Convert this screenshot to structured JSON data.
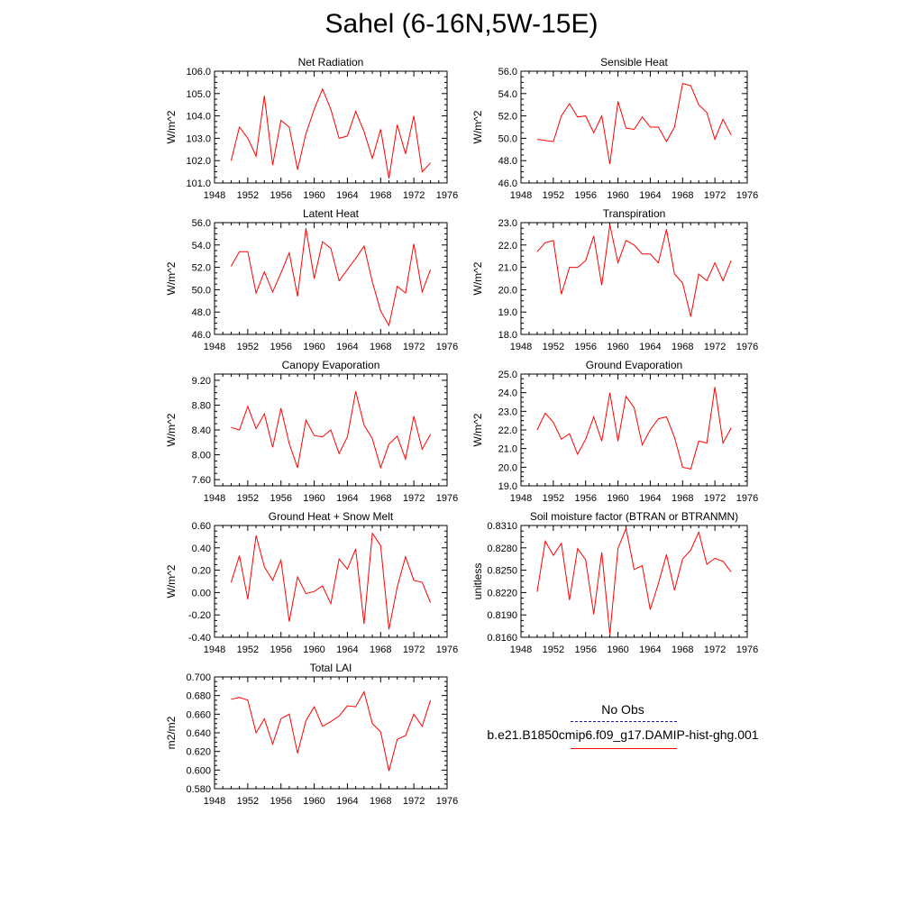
{
  "title": "Sahel (6-16N,5W-15E)",
  "legend": {
    "obs_label": "No Obs",
    "obs_color": "#1a1aa6",
    "series_label": "b.e21.B1850cmip6.f09_g17.DAMIP-hist-ghg.001",
    "series_color": "#ff0000"
  },
  "chart_data": [
    {
      "type": "line",
      "title": "Net Radiation",
      "ylabel": "W/m^2",
      "xlim": [
        1948,
        1976
      ],
      "xticks": [
        "1948",
        "1952",
        "1956",
        "1960",
        "1964",
        "1968",
        "1972",
        "1976"
      ],
      "ylim": [
        101.0,
        106.0
      ],
      "yticks": [
        "101.0",
        "102.0",
        "103.0",
        "104.0",
        "105.0",
        "106.0"
      ],
      "x": [
        1950,
        1951,
        1952,
        1953,
        1954,
        1955,
        1956,
        1957,
        1958,
        1959,
        1960,
        1961,
        1962,
        1963,
        1964,
        1965,
        1966,
        1967,
        1968,
        1969,
        1970,
        1971,
        1972,
        1973,
        1974
      ],
      "series": [
        {
          "values": [
            102.0,
            103.5,
            103.0,
            102.2,
            104.9,
            101.8,
            103.8,
            103.5,
            101.6,
            103.2,
            104.3,
            105.2,
            104.3,
            103.0,
            103.1,
            104.2,
            103.3,
            102.1,
            103.4,
            101.2,
            103.6,
            102.3,
            104.0,
            101.5,
            101.9
          ]
        }
      ]
    },
    {
      "type": "line",
      "title": "Sensible Heat",
      "ylabel": "W/m^2",
      "xlim": [
        1948,
        1976
      ],
      "xticks": [
        "1948",
        "1952",
        "1956",
        "1960",
        "1964",
        "1968",
        "1972",
        "1976"
      ],
      "ylim": [
        46.0,
        56.0
      ],
      "yticks": [
        "46.0",
        "48.0",
        "50.0",
        "52.0",
        "54.0",
        "56.0"
      ],
      "x": [
        1950,
        1951,
        1952,
        1953,
        1954,
        1955,
        1956,
        1957,
        1958,
        1959,
        1960,
        1961,
        1962,
        1963,
        1964,
        1965,
        1966,
        1967,
        1968,
        1969,
        1970,
        1971,
        1972,
        1973,
        1974
      ],
      "series": [
        {
          "values": [
            49.9,
            49.8,
            49.7,
            52.0,
            53.1,
            51.9,
            52.0,
            50.5,
            52.0,
            47.7,
            53.3,
            50.9,
            50.8,
            51.9,
            51.0,
            51.0,
            49.7,
            51.0,
            54.9,
            54.7,
            53.0,
            52.3,
            49.9,
            51.7,
            50.3
          ]
        }
      ]
    },
    {
      "type": "line",
      "title": "Latent Heat",
      "ylabel": "W/m^2",
      "xlim": [
        1948,
        1976
      ],
      "xticks": [
        "1948",
        "1952",
        "1956",
        "1960",
        "1964",
        "1968",
        "1972",
        "1976"
      ],
      "ylim": [
        46.0,
        56.0
      ],
      "yticks": [
        "46.0",
        "48.0",
        "50.0",
        "52.0",
        "54.0",
        "56.0"
      ],
      "x": [
        1950,
        1951,
        1952,
        1953,
        1954,
        1955,
        1956,
        1957,
        1958,
        1959,
        1960,
        1961,
        1962,
        1963,
        1964,
        1965,
        1966,
        1967,
        1968,
        1969,
        1970,
        1971,
        1972,
        1973,
        1974
      ],
      "series": [
        {
          "values": [
            52.1,
            53.4,
            53.4,
            49.7,
            51.6,
            49.8,
            51.5,
            53.3,
            49.4,
            55.5,
            51.0,
            54.3,
            53.7,
            50.8,
            51.8,
            52.8,
            53.9,
            50.7,
            48.1,
            46.8,
            50.3,
            49.7,
            54.1,
            49.8,
            51.8
          ]
        }
      ]
    },
    {
      "type": "line",
      "title": "Transpiration",
      "ylabel": "W/m^2",
      "xlim": [
        1948,
        1976
      ],
      "xticks": [
        "1948",
        "1952",
        "1956",
        "1960",
        "1964",
        "1968",
        "1972",
        "1976"
      ],
      "ylim": [
        18.0,
        23.0
      ],
      "yticks": [
        "18.0",
        "19.0",
        "20.0",
        "21.0",
        "22.0",
        "23.0"
      ],
      "x": [
        1950,
        1951,
        1952,
        1953,
        1954,
        1955,
        1956,
        1957,
        1958,
        1959,
        1960,
        1961,
        1962,
        1963,
        1964,
        1965,
        1966,
        1967,
        1968,
        1969,
        1970,
        1971,
        1972,
        1973,
        1974
      ],
      "series": [
        {
          "values": [
            21.7,
            22.1,
            22.2,
            19.8,
            21.0,
            21.0,
            21.3,
            22.4,
            20.2,
            22.9,
            21.2,
            22.2,
            22.0,
            21.6,
            21.6,
            21.2,
            22.7,
            20.7,
            20.3,
            18.8,
            20.7,
            20.4,
            21.2,
            20.4,
            21.3
          ]
        }
      ]
    },
    {
      "type": "line",
      "title": "Canopy Evaporation",
      "ylabel": "W/m^2",
      "xlim": [
        1948,
        1976
      ],
      "xticks": [
        "1948",
        "1952",
        "1956",
        "1960",
        "1964",
        "1968",
        "1972",
        "1976"
      ],
      "ylim": [
        7.5,
        9.3
      ],
      "yticks": [
        "7.60",
        "8.00",
        "8.40",
        "8.80",
        "9.20"
      ],
      "ytick_values": [
        7.6,
        8.0,
        8.4,
        8.8,
        9.2
      ],
      "x": [
        1950,
        1951,
        1952,
        1953,
        1954,
        1955,
        1956,
        1957,
        1958,
        1959,
        1960,
        1961,
        1962,
        1963,
        1964,
        1965,
        1966,
        1967,
        1968,
        1969,
        1970,
        1971,
        1972,
        1973,
        1974
      ],
      "series": [
        {
          "values": [
            8.44,
            8.4,
            8.78,
            8.42,
            8.66,
            8.12,
            8.75,
            8.18,
            7.79,
            8.56,
            8.31,
            8.29,
            8.4,
            8.02,
            8.29,
            9.02,
            8.48,
            8.26,
            7.79,
            8.17,
            8.3,
            7.93,
            8.62,
            8.09,
            8.33
          ]
        }
      ]
    },
    {
      "type": "line",
      "title": "Ground Evaporation",
      "ylabel": "W/m^2",
      "xlim": [
        1948,
        1976
      ],
      "xticks": [
        "1948",
        "1952",
        "1956",
        "1960",
        "1964",
        "1968",
        "1972",
        "1976"
      ],
      "ylim": [
        19.0,
        25.0
      ],
      "yticks": [
        "19.0",
        "20.0",
        "21.0",
        "22.0",
        "23.0",
        "24.0",
        "25.0"
      ],
      "x": [
        1950,
        1951,
        1952,
        1953,
        1954,
        1955,
        1956,
        1957,
        1958,
        1959,
        1960,
        1961,
        1962,
        1963,
        1964,
        1965,
        1966,
        1967,
        1968,
        1969,
        1970,
        1971,
        1972,
        1973,
        1974
      ],
      "series": [
        {
          "values": [
            22.0,
            22.9,
            22.4,
            21.5,
            21.8,
            20.7,
            21.5,
            22.7,
            21.4,
            24.0,
            21.4,
            23.8,
            23.2,
            21.2,
            22.0,
            22.6,
            22.7,
            21.6,
            20.0,
            19.9,
            21.4,
            21.3,
            24.3,
            21.3,
            22.1
          ]
        }
      ]
    },
    {
      "type": "line",
      "title": "Ground Heat + Snow Melt",
      "ylabel": "W/m^2",
      "xlim": [
        1948,
        1976
      ],
      "xticks": [
        "1948",
        "1952",
        "1956",
        "1960",
        "1964",
        "1968",
        "1972",
        "1976"
      ],
      "ylim": [
        -0.4,
        0.6
      ],
      "yticks": [
        "-0.40",
        "-0.20",
        "0.00",
        "0.20",
        "0.40",
        "0.60"
      ],
      "x": [
        1950,
        1951,
        1952,
        1953,
        1954,
        1955,
        1956,
        1957,
        1958,
        1959,
        1960,
        1961,
        1962,
        1963,
        1964,
        1965,
        1966,
        1967,
        1968,
        1969,
        1970,
        1971,
        1972,
        1973,
        1974
      ],
      "series": [
        {
          "values": [
            0.09,
            0.33,
            -0.06,
            0.51,
            0.23,
            0.11,
            0.29,
            -0.26,
            0.14,
            -0.01,
            0.01,
            0.06,
            -0.1,
            0.3,
            0.21,
            0.39,
            -0.28,
            0.53,
            0.42,
            -0.33,
            0.05,
            0.32,
            0.11,
            0.09,
            -0.09
          ]
        }
      ]
    },
    {
      "type": "line",
      "title": "Soil moisture factor (BTRAN or BTRANMN)",
      "ylabel": "unitless",
      "xlim": [
        1948,
        1976
      ],
      "xticks": [
        "1948",
        "1952",
        "1956",
        "1960",
        "1964",
        "1968",
        "1972",
        "1976"
      ],
      "ylim": [
        0.816,
        0.831
      ],
      "yticks": [
        "0.8160",
        "0.8190",
        "0.8220",
        "0.8250",
        "0.8280",
        "0.8310"
      ],
      "x": [
        1950,
        1951,
        1952,
        1953,
        1954,
        1955,
        1956,
        1957,
        1958,
        1959,
        1960,
        1961,
        1962,
        1963,
        1964,
        1965,
        1966,
        1967,
        1968,
        1969,
        1970,
        1971,
        1972,
        1973,
        1974
      ],
      "series": [
        {
          "values": [
            0.8221,
            0.8289,
            0.827,
            0.8286,
            0.821,
            0.8279,
            0.8264,
            0.8191,
            0.8274,
            0.8164,
            0.8279,
            0.8306,
            0.8251,
            0.8256,
            0.8197,
            0.8232,
            0.8271,
            0.8223,
            0.8265,
            0.8277,
            0.8301,
            0.8258,
            0.8266,
            0.8262,
            0.8248
          ]
        }
      ]
    },
    {
      "type": "line",
      "title": "Total LAI",
      "ylabel": "m2/m2",
      "xlim": [
        1948,
        1976
      ],
      "xticks": [
        "1948",
        "1952",
        "1956",
        "1960",
        "1964",
        "1968",
        "1972",
        "1976"
      ],
      "ylim": [
        0.58,
        0.7
      ],
      "yticks": [
        "0.580",
        "0.600",
        "0.620",
        "0.640",
        "0.660",
        "0.680",
        "0.700"
      ],
      "x": [
        1950,
        1951,
        1952,
        1953,
        1954,
        1955,
        1956,
        1957,
        1958,
        1959,
        1960,
        1961,
        1962,
        1963,
        1964,
        1965,
        1966,
        1967,
        1968,
        1969,
        1970,
        1971,
        1972,
        1973,
        1974
      ],
      "series": [
        {
          "values": [
            0.676,
            0.678,
            0.675,
            0.64,
            0.655,
            0.628,
            0.655,
            0.66,
            0.618,
            0.653,
            0.668,
            0.647,
            0.652,
            0.658,
            0.669,
            0.668,
            0.684,
            0.65,
            0.641,
            0.599,
            0.633,
            0.637,
            0.66,
            0.647,
            0.675
          ]
        }
      ]
    }
  ]
}
